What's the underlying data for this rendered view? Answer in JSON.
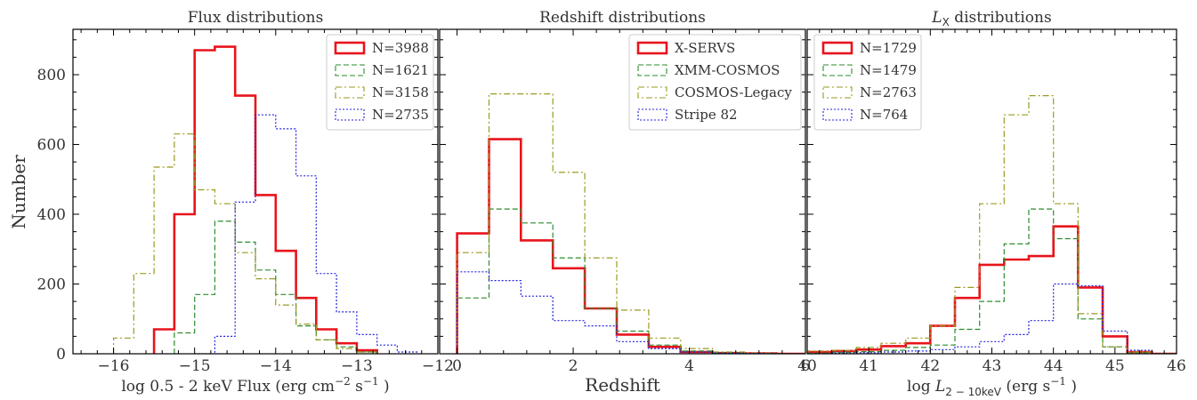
{
  "chart_data": [
    {
      "type": "histogram",
      "title": "Flux distributions",
      "xlabel_parts": [
        "log 0.5 - 2 keV Flux  (erg cm",
        "−2",
        " s",
        "−1",
        " )"
      ],
      "ylabel": "Number",
      "xlim": [
        -16.5,
        -12
      ],
      "ylim": [
        0,
        930
      ],
      "xticks": [
        -16,
        -15,
        -14,
        -13,
        -12
      ],
      "xtick_labels": [
        "−16",
        "−15",
        "−14",
        "−13",
        "−12"
      ],
      "yticks": [
        0,
        200,
        400,
        600,
        800
      ],
      "ytick_labels": [
        "0",
        "200",
        "400",
        "600",
        "800"
      ],
      "legend_position": "top-right",
      "series": [
        {
          "name": "N=3988",
          "color": "#e8141c",
          "dash": "solid",
          "width": 2.6,
          "edges": [
            -15.5,
            -15.25,
            -15.0,
            -14.75,
            -14.5,
            -14.25,
            -14.0,
            -13.75,
            -13.5,
            -13.25,
            -13.0,
            -12.75
          ],
          "values": [
            70,
            400,
            870,
            880,
            740,
            455,
            295,
            160,
            70,
            30,
            10
          ]
        },
        {
          "name": "N=1621",
          "color": "#2e8b2e",
          "dash": "6,3",
          "width": 1.2,
          "edges": [
            -15.25,
            -15.0,
            -14.75,
            -14.5,
            -14.25,
            -14.0,
            -13.75,
            -13.5,
            -13.25,
            -13.0,
            -12.75
          ],
          "values": [
            60,
            170,
            380,
            320,
            240,
            170,
            80,
            40,
            20,
            5
          ]
        },
        {
          "name": "N=3158",
          "color": "#9a9a20",
          "dash": "7,3,2,3",
          "width": 1.2,
          "edges": [
            -16.0,
            -15.75,
            -15.5,
            -15.25,
            -15.0,
            -14.75,
            -14.5,
            -14.25,
            -14.0,
            -13.75,
            -13.5,
            -13.25,
            -13.0,
            -12.75
          ],
          "values": [
            45,
            230,
            535,
            630,
            470,
            430,
            290,
            215,
            140,
            85,
            40,
            15,
            5
          ]
        },
        {
          "name": "N=2735",
          "color": "#2323dd",
          "dash": "2,2",
          "width": 1.2,
          "edges": [
            -15.0,
            -14.75,
            -14.5,
            -14.25,
            -14.0,
            -13.75,
            -13.5,
            -13.25,
            -13.0,
            -12.75,
            -12.5,
            -12.25
          ],
          "values": [
            0,
            50,
            435,
            685,
            645,
            510,
            230,
            120,
            55,
            25,
            5
          ]
        }
      ]
    },
    {
      "type": "histogram",
      "title": "Redshift distributions",
      "xlabel_parts": [
        "Redshift"
      ],
      "xlim": [
        -0.3,
        6
      ],
      "ylim": [
        0,
        930
      ],
      "xticks": [
        0,
        2,
        4,
        6
      ],
      "xtick_labels": [
        "0",
        "2",
        "4",
        "6"
      ],
      "yticks": [
        0,
        200,
        400,
        600,
        800
      ],
      "legend_position": "top-right",
      "series": [
        {
          "name": "X-SERVS",
          "color": "#e8141c",
          "dash": "solid",
          "width": 2.6,
          "edges": [
            0,
            0.55,
            1.1,
            1.65,
            2.2,
            2.75,
            3.3,
            3.85,
            4.4,
            4.95,
            5.5,
            6.0
          ],
          "values": [
            345,
            615,
            325,
            245,
            130,
            55,
            20,
            5,
            2,
            1,
            0
          ]
        },
        {
          "name": "XMM-COSMOS",
          "color": "#2e8b2e",
          "dash": "6,3",
          "width": 1.2,
          "edges": [
            0,
            0.55,
            1.1,
            1.65,
            2.2,
            2.75,
            3.3,
            3.85,
            4.4,
            4.95,
            5.5,
            6.0
          ],
          "values": [
            160,
            415,
            375,
            275,
            130,
            65,
            25,
            8,
            2,
            1,
            0
          ]
        },
        {
          "name": "COSMOS-Legacy",
          "color": "#9a9a20",
          "dash": "7,3,2,3",
          "width": 1.2,
          "edges": [
            0,
            0.55,
            1.1,
            1.65,
            2.2,
            2.75,
            3.3,
            3.85,
            4.4,
            4.95,
            5.5,
            6.0
          ],
          "values": [
            290,
            745,
            745,
            520,
            275,
            125,
            45,
            15,
            5,
            2,
            0
          ]
        },
        {
          "name": "Stripe 82",
          "color": "#2323dd",
          "dash": "2,2",
          "width": 1.2,
          "edges": [
            0,
            0.55,
            1.1,
            1.65,
            2.2,
            2.75,
            3.3,
            3.85,
            4.4,
            4.95,
            5.5,
            6.0
          ],
          "values": [
            235,
            210,
            165,
            95,
            80,
            35,
            15,
            5,
            2,
            1,
            0
          ]
        }
      ]
    },
    {
      "type": "histogram",
      "title_parts": [
        "L",
        "X",
        " distributions"
      ],
      "xlabel_parts": [
        "log ",
        "L",
        "2 − 10keV",
        " (erg s",
        "−1",
        " )"
      ],
      "xlim": [
        40,
        46
      ],
      "ylim": [
        0,
        930
      ],
      "xticks": [
        40,
        41,
        42,
        43,
        44,
        45,
        46
      ],
      "xtick_labels": [
        "40",
        "41",
        "42",
        "43",
        "44",
        "45",
        "46"
      ],
      "yticks": [
        0,
        200,
        400,
        600,
        800
      ],
      "legend_position": "top-left",
      "series": [
        {
          "name": "N=1729",
          "color": "#e8141c",
          "dash": "solid",
          "width": 2.6,
          "edges": [
            40.0,
            40.4,
            40.8,
            41.2,
            41.6,
            42.0,
            42.4,
            42.8,
            43.2,
            43.6,
            44.0,
            44.4,
            44.8,
            45.2,
            45.6,
            46.0
          ],
          "values": [
            5,
            8,
            12,
            22,
            30,
            80,
            160,
            255,
            270,
            280,
            365,
            190,
            50,
            5,
            0
          ]
        },
        {
          "name": "N=1479",
          "color": "#2e8b2e",
          "dash": "6,3",
          "width": 1.2,
          "edges": [
            40.0,
            40.4,
            40.8,
            41.2,
            41.6,
            42.0,
            42.4,
            42.8,
            43.2,
            43.6,
            44.0,
            44.4,
            44.8,
            45.2,
            45.6,
            46.0
          ],
          "values": [
            2,
            4,
            6,
            10,
            18,
            25,
            70,
            150,
            315,
            415,
            330,
            100,
            20,
            3,
            0
          ]
        },
        {
          "name": "N=2763",
          "color": "#9a9a20",
          "dash": "7,3,2,3",
          "width": 1.2,
          "edges": [
            40.0,
            40.4,
            40.8,
            41.2,
            41.6,
            42.0,
            42.4,
            42.8,
            43.2,
            43.6,
            44.0,
            44.4,
            44.8,
            45.2,
            45.6,
            46.0
          ],
          "values": [
            8,
            10,
            18,
            30,
            45,
            80,
            190,
            430,
            685,
            740,
            430,
            115,
            20,
            5,
            0
          ]
        },
        {
          "name": "N=764",
          "color": "#2323dd",
          "dash": "2,2",
          "width": 1.2,
          "edges": [
            40.0,
            40.4,
            40.8,
            41.2,
            41.6,
            42.0,
            42.4,
            42.8,
            43.2,
            43.6,
            44.0,
            44.4,
            44.8,
            45.2,
            45.6,
            46.0
          ],
          "values": [
            0,
            2,
            3,
            5,
            8,
            12,
            20,
            35,
            55,
            95,
            200,
            195,
            65,
            10,
            0
          ]
        }
      ]
    }
  ]
}
